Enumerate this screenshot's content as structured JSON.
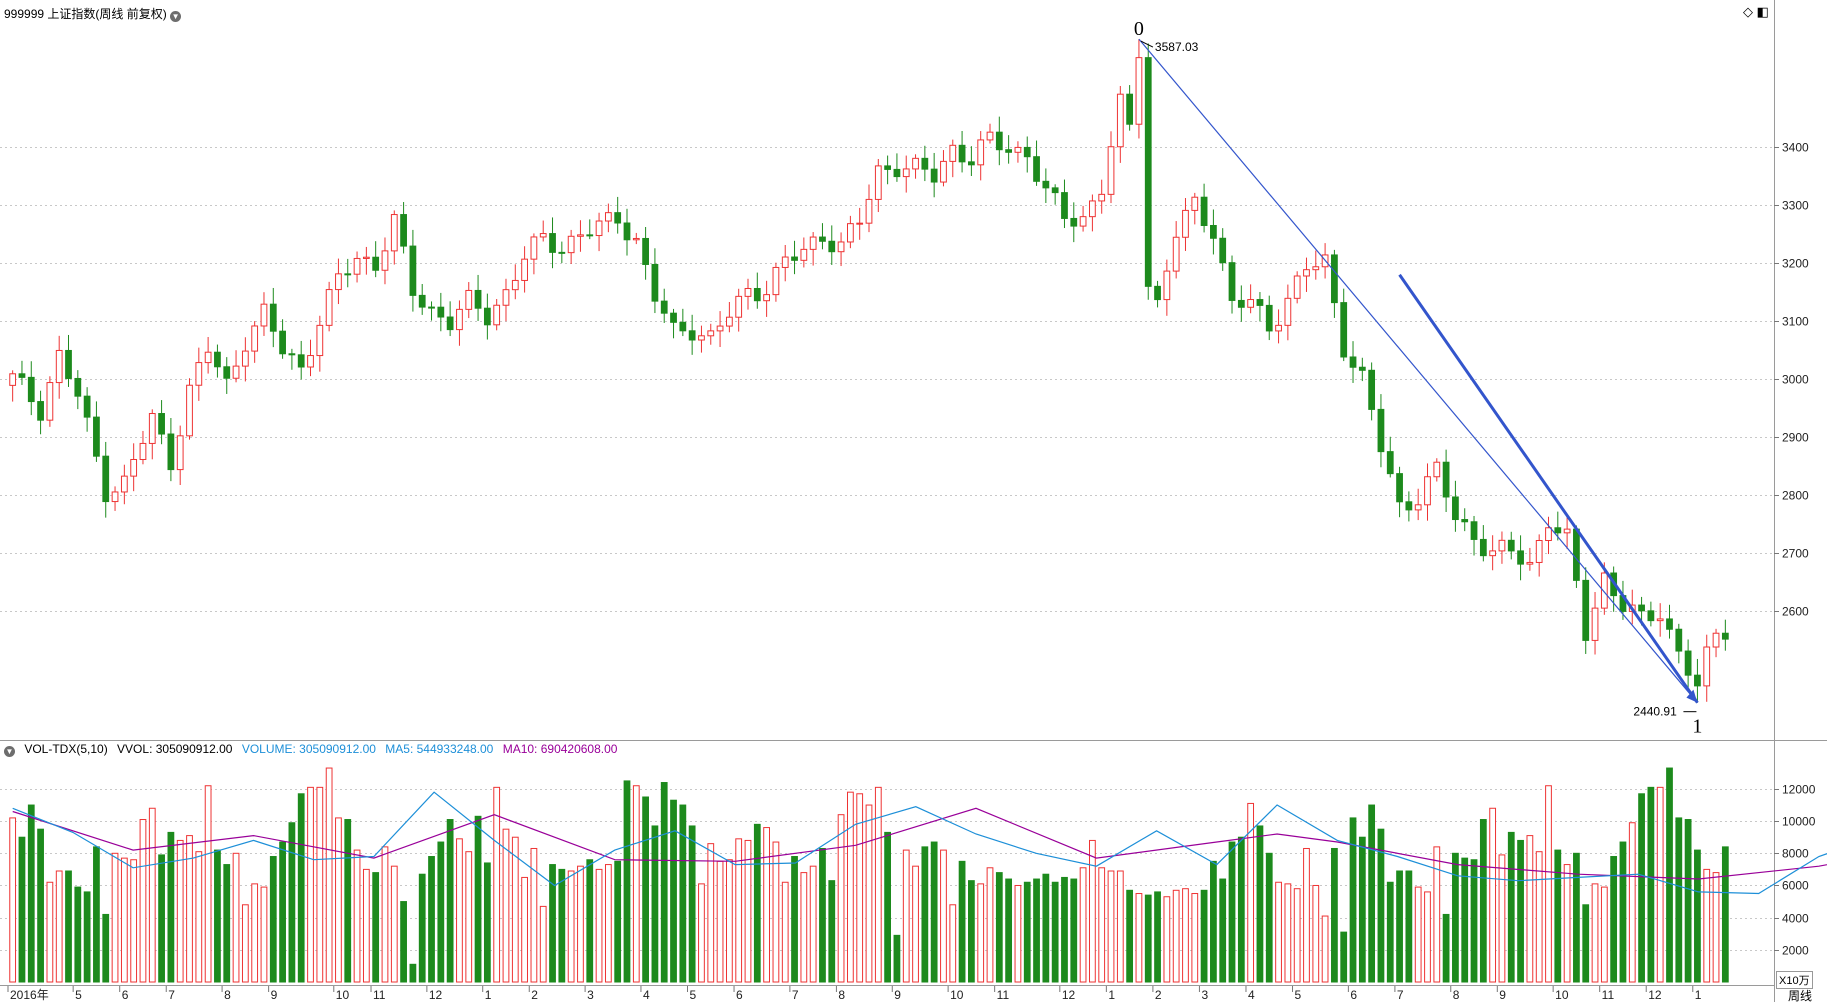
{
  "header": {
    "title": "999999 上证指数(周线 前复权)",
    "icon_diamond": "◇",
    "icon_box": "◧"
  },
  "volume_header": {
    "indicator": "VOL-TDX(5,10)",
    "vvol": "VVOL: 305090912.00",
    "volume": "VOLUME: 305090912.00",
    "ma5": "MA5: 544933248.00",
    "ma10": "MA10: 690420608.00",
    "unit": "X10万"
  },
  "footer": {
    "period_label": "周线"
  },
  "colors": {
    "up": "#ee3333",
    "down": "#1d8a1d",
    "trendline": "#3355cc",
    "ma5": "#1d8fd8",
    "ma10": "#990099",
    "grid": "#c8c8c8"
  },
  "chart_data": {
    "type": "candlestick",
    "price_axis": {
      "ticks": [
        2600,
        2700,
        2800,
        2900,
        3000,
        3100,
        3200,
        3300,
        3400
      ],
      "range": [
        2380,
        3620
      ]
    },
    "volume_axis": {
      "ticks": [
        2000,
        4000,
        6000,
        8000,
        10000,
        12000
      ],
      "range": [
        0,
        13800
      ],
      "unit": "X10万"
    },
    "x_labels": [
      "2016年",
      "5",
      "6",
      "7",
      "8",
      "9",
      "10",
      "11",
      "12",
      "1",
      "2",
      "3",
      "4",
      "5",
      "6",
      "7",
      "8",
      "9",
      "10",
      "11",
      "12",
      "1",
      "2",
      "3",
      "4",
      "5",
      "6",
      "7",
      "8",
      "9",
      "10",
      "11",
      "12",
      "1"
    ],
    "x_label_index": [
      0,
      7,
      12,
      17,
      23,
      28,
      35,
      39,
      45,
      51,
      56,
      62,
      68,
      73,
      78,
      84,
      89,
      95,
      101,
      106,
      113,
      118,
      123,
      128,
      133,
      138,
      144,
      149,
      155,
      160,
      166,
      171,
      176,
      181
    ],
    "annotations": {
      "high_label": "3587.03",
      "low_label": "2440.91",
      "wave_start": "0",
      "wave_end": "1"
    },
    "trendline": {
      "from_index": 121,
      "from_price": 3587,
      "to_index": 181,
      "to_price": 2441
    },
    "anchors": [
      [
        0,
        3000
      ],
      [
        3,
        2950
      ],
      [
        5,
        3040
      ],
      [
        7,
        2970
      ],
      [
        10,
        2810
      ],
      [
        12,
        2820
      ],
      [
        15,
        2930
      ],
      [
        17,
        2860
      ],
      [
        19,
        2980
      ],
      [
        21,
        3050
      ],
      [
        23,
        2990
      ],
      [
        25,
        3070
      ],
      [
        27,
        3110
      ],
      [
        29,
        3050
      ],
      [
        31,
        3020
      ],
      [
        33,
        3100
      ],
      [
        35,
        3170
      ],
      [
        37,
        3210
      ],
      [
        39,
        3200
      ],
      [
        41,
        3270
      ],
      [
        43,
        3150
      ],
      [
        45,
        3120
      ],
      [
        47,
        3100
      ],
      [
        49,
        3130
      ],
      [
        51,
        3110
      ],
      [
        53,
        3150
      ],
      [
        55,
        3210
      ],
      [
        57,
        3240
      ],
      [
        59,
        3230
      ],
      [
        61,
        3250
      ],
      [
        63,
        3260
      ],
      [
        65,
        3280
      ],
      [
        67,
        3240
      ],
      [
        69,
        3140
      ],
      [
        71,
        3080
      ],
      [
        73,
        3090
      ],
      [
        75,
        3070
      ],
      [
        77,
        3110
      ],
      [
        79,
        3150
      ],
      [
        81,
        3160
      ],
      [
        83,
        3200
      ],
      [
        85,
        3220
      ],
      [
        87,
        3250
      ],
      [
        89,
        3230
      ],
      [
        91,
        3270
      ],
      [
        93,
        3360
      ],
      [
        95,
        3370
      ],
      [
        97,
        3360
      ],
      [
        99,
        3350
      ],
      [
        101,
        3400
      ],
      [
        103,
        3380
      ],
      [
        105,
        3410
      ],
      [
        107,
        3400
      ],
      [
        109,
        3390
      ],
      [
        111,
        3320
      ],
      [
        113,
        3280
      ],
      [
        115,
        3280
      ],
      [
        117,
        3330
      ],
      [
        119,
        3470
      ],
      [
        121,
        3560
      ],
      [
        123,
        3130
      ],
      [
        125,
        3250
      ],
      [
        127,
        3300
      ],
      [
        129,
        3260
      ],
      [
        131,
        3130
      ],
      [
        133,
        3130
      ],
      [
        135,
        3090
      ],
      [
        137,
        3140
      ],
      [
        139,
        3190
      ],
      [
        141,
        3200
      ],
      [
        143,
        3060
      ],
      [
        145,
        3000
      ],
      [
        147,
        2880
      ],
      [
        149,
        2780
      ],
      [
        151,
        2800
      ],
      [
        153,
        2840
      ],
      [
        155,
        2760
      ],
      [
        157,
        2730
      ],
      [
        159,
        2700
      ],
      [
        161,
        2700
      ],
      [
        163,
        2680
      ],
      [
        165,
        2760
      ],
      [
        167,
        2720
      ],
      [
        169,
        2560
      ],
      [
        171,
        2660
      ],
      [
        173,
        2610
      ],
      [
        175,
        2580
      ],
      [
        177,
        2600
      ],
      [
        179,
        2530
      ],
      [
        181,
        2470
      ],
      [
        183,
        2560
      ],
      [
        184,
        2570
      ]
    ],
    "volumes": [
      10200,
      9000,
      11000,
      9500,
      6200,
      6900,
      6900,
      5900,
      5600,
      8400,
      4200,
      8000,
      7700,
      7600,
      10100,
      10800,
      7900,
      9300,
      8800,
      9100,
      8100,
      12200,
      8200,
      7300,
      8000,
      4800,
      6100,
      5900,
      7800,
      8700,
      9900,
      11700,
      12100,
      12100,
      13300,
      10200,
      10100,
      8200,
      7000,
      6800,
      8400,
      7200,
      5000,
      1100,
      6700,
      7800,
      8700,
      10100,
      8900,
      8100,
      10300,
      7400,
      12100,
      9500,
      9000,
      6500,
      8300,
      4700,
      7300,
      7000,
      6900,
      7200,
      7600,
      7000,
      7300,
      7500,
      12500,
      12200,
      11500,
      9700,
      12400,
      11300,
      11000,
      9700,
      6100,
      8600,
      7500,
      7600,
      8900,
      8800,
      9800,
      9600,
      8700,
      6200,
      7800,
      6800,
      7200,
      8300,
      6300,
      10400,
      11800,
      11700,
      11000,
      12100,
      9300,
      2900,
      8200,
      7200,
      8400,
      8700,
      8200,
      4800,
      7500,
      6300,
      6100,
      7100,
      6800,
      6400,
      6000,
      6200,
      6400,
      6700,
      6200,
      6500,
      6400,
      7100,
      8800,
      7100,
      6900,
      6900,
      5700,
      5500,
      5400,
      5600,
      5300,
      5700,
      5800,
      5500,
      5700,
      7500,
      6400,
      8700,
      9000,
      11100,
      9700,
      8000,
      6200,
      6100,
      5800,
      8300,
      6000,
      4100,
      8300,
      3100
    ],
    "ma5_points": [
      [
        0,
        10800
      ],
      [
        5,
        9300
      ],
      [
        10,
        7100
      ],
      [
        15,
        7700
      ],
      [
        20,
        8800
      ],
      [
        25,
        7600
      ],
      [
        30,
        7800
      ],
      [
        35,
        11800
      ],
      [
        40,
        8800
      ],
      [
        45,
        6000
      ],
      [
        50,
        8200
      ],
      [
        55,
        9400
      ],
      [
        60,
        7300
      ],
      [
        65,
        7400
      ],
      [
        70,
        9800
      ],
      [
        75,
        10900
      ],
      [
        80,
        9200
      ],
      [
        85,
        8000
      ],
      [
        90,
        7200
      ],
      [
        95,
        9400
      ],
      [
        100,
        7300
      ],
      [
        105,
        11000
      ],
      [
        110,
        8800
      ],
      [
        115,
        7800
      ],
      [
        120,
        6600
      ],
      [
        125,
        6300
      ],
      [
        130,
        6500
      ],
      [
        135,
        6700
      ],
      [
        140,
        5600
      ],
      [
        145,
        5500
      ],
      [
        150,
        7800
      ],
      [
        155,
        9100
      ],
      [
        160,
        7600
      ],
      [
        163,
        5400
      ]
    ],
    "ma10_points": [
      [
        0,
        10600
      ],
      [
        10,
        8200
      ],
      [
        20,
        9100
      ],
      [
        30,
        7700
      ],
      [
        40,
        10400
      ],
      [
        50,
        7600
      ],
      [
        60,
        7500
      ],
      [
        70,
        8500
      ],
      [
        80,
        10800
      ],
      [
        90,
        7700
      ],
      [
        100,
        8700
      ],
      [
        105,
        9200
      ],
      [
        110,
        8700
      ],
      [
        120,
        7300
      ],
      [
        130,
        6700
      ],
      [
        140,
        6400
      ],
      [
        150,
        7200
      ],
      [
        155,
        7900
      ],
      [
        160,
        7900
      ],
      [
        163,
        7000
      ]
    ]
  }
}
